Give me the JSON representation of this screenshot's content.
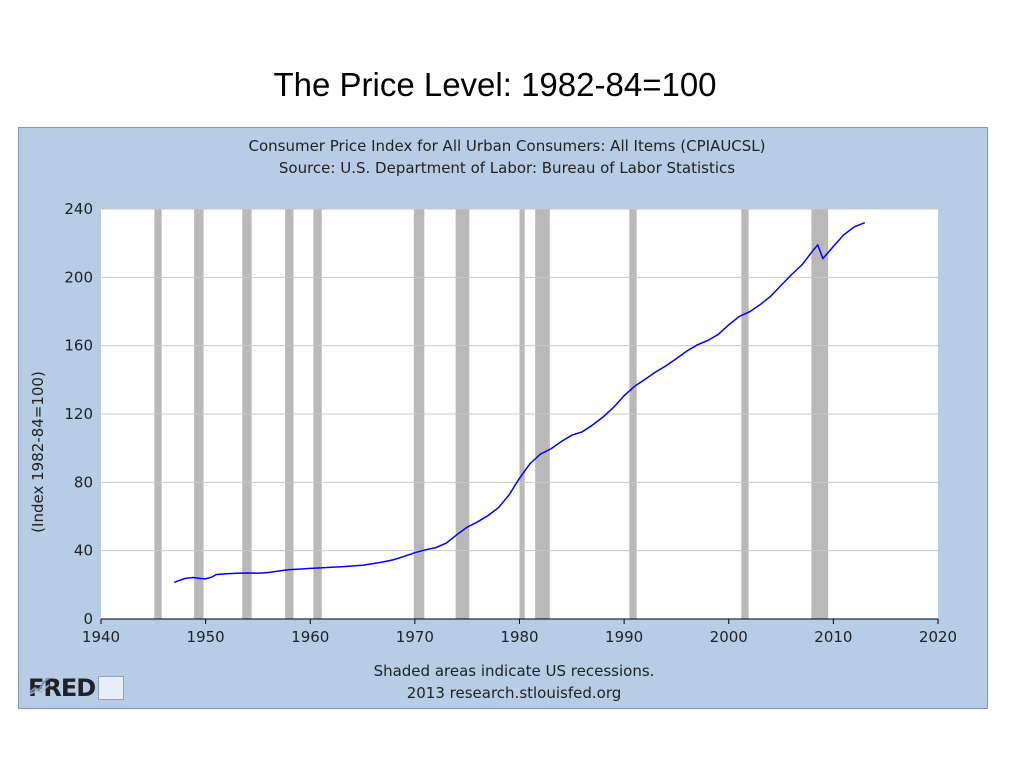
{
  "slide": {
    "title": "The Price Level:  1982-84=100"
  },
  "chart_data": {
    "type": "line",
    "title": "Consumer Price Index for All Urban Consumers: All Items (CPIAUCSL)",
    "subtitle": "Source: U.S. Department of Labor: Bureau of Labor Statistics",
    "xlabel": "",
    "ylabel": "(Index 1982-84=100)",
    "xlim": [
      1940,
      2020
    ],
    "ylim": [
      0,
      240
    ],
    "xticks": [
      1940,
      1950,
      1960,
      1970,
      1980,
      1990,
      2000,
      2010,
      2020
    ],
    "yticks": [
      0,
      40,
      80,
      120,
      160,
      200,
      240
    ],
    "grid": true,
    "line_color": "#0000ff",
    "recession_color": "#b9b9b9",
    "recessions": [
      [
        1945.1,
        1945.8
      ],
      [
        1948.9,
        1949.8
      ],
      [
        1953.5,
        1954.4
      ],
      [
        1957.6,
        1958.4
      ],
      [
        1960.3,
        1961.1
      ],
      [
        1969.9,
        1970.9
      ],
      [
        1973.9,
        1975.2
      ],
      [
        1980.0,
        1980.5
      ],
      [
        1981.5,
        1982.9
      ],
      [
        1990.5,
        1991.2
      ],
      [
        2001.2,
        2001.9
      ],
      [
        2007.9,
        2009.5
      ]
    ],
    "series": [
      {
        "values": [
          [
            1947.0,
            21.5
          ],
          [
            1948.0,
            23.7
          ],
          [
            1948.8,
            24.3
          ],
          [
            1949.5,
            23.7
          ],
          [
            1950.0,
            23.5
          ],
          [
            1950.6,
            24.5
          ],
          [
            1951.0,
            26.0
          ],
          [
            1952.0,
            26.5
          ],
          [
            1953.0,
            26.8
          ],
          [
            1954.0,
            26.9
          ],
          [
            1955.0,
            26.8
          ],
          [
            1956.0,
            27.2
          ],
          [
            1957.0,
            28.1
          ],
          [
            1958.0,
            28.9
          ],
          [
            1959.0,
            29.2
          ],
          [
            1960.0,
            29.6
          ],
          [
            1961.0,
            29.9
          ],
          [
            1962.0,
            30.3
          ],
          [
            1963.0,
            30.6
          ],
          [
            1964.0,
            31.0
          ],
          [
            1965.0,
            31.5
          ],
          [
            1966.0,
            32.4
          ],
          [
            1967.0,
            33.4
          ],
          [
            1968.0,
            34.8
          ],
          [
            1969.0,
            36.7
          ],
          [
            1970.0,
            38.8
          ],
          [
            1971.0,
            40.5
          ],
          [
            1972.0,
            41.8
          ],
          [
            1973.0,
            44.4
          ],
          [
            1974.0,
            49.3
          ],
          [
            1975.0,
            53.8
          ],
          [
            1976.0,
            56.9
          ],
          [
            1977.0,
            60.6
          ],
          [
            1978.0,
            65.2
          ],
          [
            1979.0,
            72.6
          ],
          [
            1980.0,
            82.4
          ],
          [
            1981.0,
            90.9
          ],
          [
            1982.0,
            96.5
          ],
          [
            1983.0,
            99.6
          ],
          [
            1984.0,
            103.9
          ],
          [
            1985.0,
            107.6
          ],
          [
            1986.0,
            109.6
          ],
          [
            1987.0,
            113.6
          ],
          [
            1988.0,
            118.3
          ],
          [
            1989.0,
            124.0
          ],
          [
            1990.0,
            130.7
          ],
          [
            1991.0,
            136.2
          ],
          [
            1992.0,
            140.3
          ],
          [
            1993.0,
            144.5
          ],
          [
            1994.0,
            148.2
          ],
          [
            1995.0,
            152.4
          ],
          [
            1996.0,
            156.9
          ],
          [
            1997.0,
            160.5
          ],
          [
            1998.0,
            163.0
          ],
          [
            1999.0,
            166.6
          ],
          [
            2000.0,
            172.2
          ],
          [
            2001.0,
            177.1
          ],
          [
            2002.0,
            179.9
          ],
          [
            2003.0,
            184.0
          ],
          [
            2004.0,
            188.9
          ],
          [
            2005.0,
            195.3
          ],
          [
            2006.0,
            201.6
          ],
          [
            2007.0,
            207.3
          ],
          [
            2008.0,
            215.3
          ],
          [
            2008.5,
            219.0
          ],
          [
            2009.0,
            211.0
          ],
          [
            2009.5,
            214.5
          ],
          [
            2010.0,
            218.1
          ],
          [
            2011.0,
            224.9
          ],
          [
            2012.0,
            229.6
          ],
          [
            2013.0,
            232.0
          ]
        ]
      }
    ],
    "footnote": "Shaded areas indicate US recessions.",
    "credit": "2013 research.stlouisfed.org"
  },
  "logo": {
    "text": "FRED",
    "icon": "fred-chart-icon"
  }
}
